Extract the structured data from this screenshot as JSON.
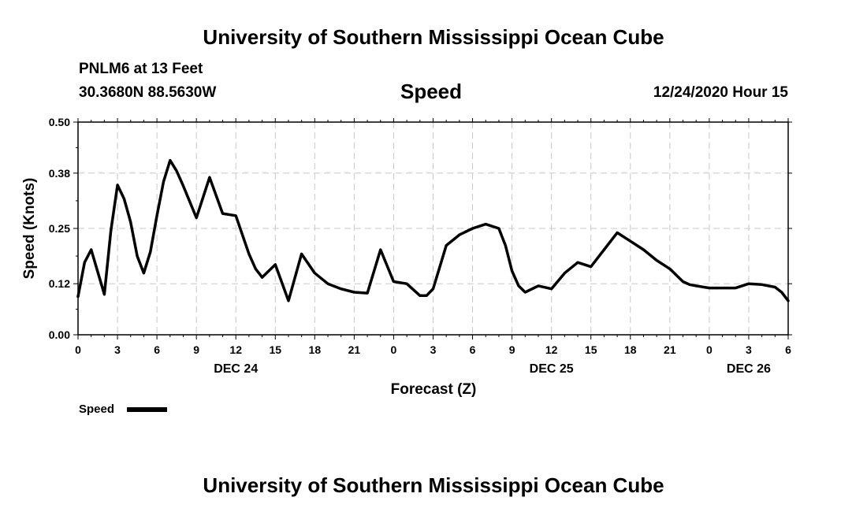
{
  "header": {
    "top_title": "University of Southern Mississippi Ocean Cube",
    "station": "PNLM6 at 13 Feet",
    "coords": "30.3680N 88.5630W",
    "variable": "Speed",
    "datetime": "12/24/2020 Hour 15"
  },
  "footer": {
    "bottom_title": "University of Southern Mississippi Ocean Cube"
  },
  "legend": {
    "label": "Speed"
  },
  "colors": {
    "line": "#000000",
    "grid": "#c8c8c8"
  },
  "chart_data": {
    "type": "line",
    "title": "Speed",
    "xlabel": "Forecast (Z)",
    "ylabel": "Speed (Knots)",
    "xlim": [
      0,
      54
    ],
    "ylim": [
      0,
      0.5
    ],
    "yticks": [
      0.0,
      0.12,
      0.25,
      0.38,
      0.5
    ],
    "ytick_labels": [
      "0.00",
      "0.12",
      "0.25",
      "0.38",
      "0.50"
    ],
    "xticks": [
      0,
      3,
      6,
      9,
      12,
      15,
      18,
      21,
      24,
      27,
      30,
      33,
      36,
      39,
      42,
      45,
      48,
      51,
      54
    ],
    "xtick_labels": [
      "0",
      "3",
      "6",
      "9",
      "12",
      "15",
      "18",
      "21",
      "0",
      "3",
      "6",
      "9",
      "12",
      "15",
      "18",
      "21",
      "0",
      "3",
      "6"
    ],
    "day_labels": [
      {
        "x": 12,
        "label": "DEC 24"
      },
      {
        "x": 36,
        "label": "DEC 25"
      },
      {
        "x": 51,
        "label": "DEC 26"
      }
    ],
    "grid": true,
    "legend_position": "bottom-left",
    "series": [
      {
        "name": "Speed",
        "x": [
          0,
          0.5,
          1,
          2,
          2.5,
          3,
          3.5,
          4,
          4.5,
          5,
          5.5,
          6,
          6.5,
          7,
          7.5,
          8,
          9,
          10,
          11,
          12,
          13,
          13.5,
          14,
          15,
          16,
          17,
          18,
          19,
          20,
          21,
          22,
          23,
          24,
          25,
          26,
          26.5,
          27,
          28,
          29,
          30,
          31,
          32,
          32.5,
          33,
          33.5,
          34,
          35,
          36,
          37,
          38,
          39,
          40,
          41,
          42,
          43,
          44,
          45,
          46,
          46.5,
          47,
          48,
          49,
          50,
          51,
          52,
          53,
          53.5,
          54
        ],
        "values": [
          0.09,
          0.17,
          0.2,
          0.095,
          0.245,
          0.352,
          0.32,
          0.265,
          0.185,
          0.145,
          0.195,
          0.28,
          0.36,
          0.41,
          0.385,
          0.35,
          0.275,
          0.37,
          0.285,
          0.28,
          0.19,
          0.155,
          0.135,
          0.165,
          0.08,
          0.19,
          0.145,
          0.12,
          0.108,
          0.1,
          0.098,
          0.2,
          0.125,
          0.12,
          0.092,
          0.092,
          0.108,
          0.21,
          0.235,
          0.25,
          0.26,
          0.25,
          0.21,
          0.15,
          0.115,
          0.1,
          0.115,
          0.108,
          0.145,
          0.17,
          0.16,
          0.2,
          0.24,
          0.22,
          0.2,
          0.175,
          0.155,
          0.125,
          0.118,
          0.115,
          0.11,
          0.11,
          0.11,
          0.12,
          0.118,
          0.112,
          0.1,
          0.08
        ]
      }
    ]
  }
}
